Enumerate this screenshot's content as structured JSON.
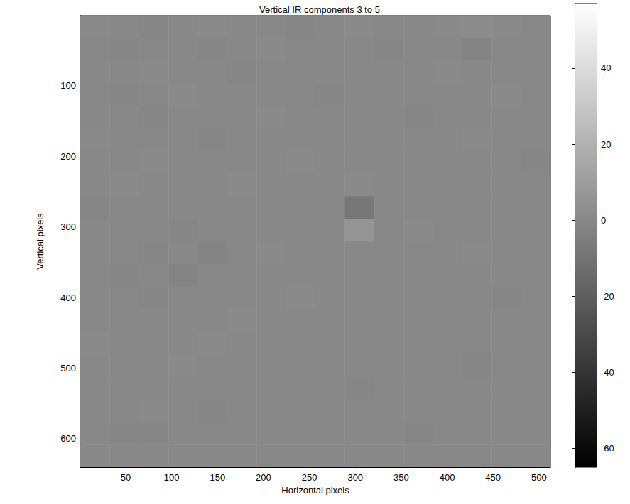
{
  "chart_data": {
    "type": "heatmap",
    "title": "Vertical IR components 3 to 5",
    "x_label": "Horizontal pixels",
    "y_label": "Vertical pixels",
    "color": "gray",
    "xlim": [
      0.5,
      512.5
    ],
    "ylim": [
      0.5,
      640.5
    ],
    "xticks": [
      50,
      100,
      150,
      200,
      250,
      300,
      350,
      400,
      450,
      500
    ],
    "yticks": [
      100,
      200,
      300,
      400,
      500,
      600
    ],
    "x_edges": [
      0.5,
      32.5,
      64.5,
      96.5,
      128.5,
      160.5,
      192.5,
      224.5,
      256.5,
      288.5,
      320.5,
      352.5,
      384.5,
      416.5,
      448.5,
      480.5,
      512.5
    ],
    "y_edges": [
      0.5,
      32.5,
      64.5,
      96.5,
      128.5,
      160.5,
      192.5,
      224.5,
      256.5,
      288.5,
      320.5,
      352.5,
      384.5,
      416.5,
      448.5,
      480.5,
      512.5,
      544.5,
      576.5,
      608.5,
      640.5
    ],
    "cells": [
      [
        1,
        0,
        -1,
        0,
        1,
        0,
        0,
        -1,
        0,
        1,
        0,
        0,
        1,
        2,
        1,
        0
      ],
      [
        0,
        -1,
        0,
        0,
        -1,
        0,
        1,
        0,
        0,
        0,
        -1,
        0,
        0,
        -2,
        0,
        0
      ],
      [
        0,
        0,
        1,
        0,
        0,
        -1,
        0,
        0,
        0,
        0,
        0,
        0,
        1,
        0,
        0,
        0
      ],
      [
        0,
        -1,
        0,
        1,
        0,
        0,
        0,
        0,
        -1,
        0,
        0,
        0,
        0,
        0,
        1,
        0
      ],
      [
        0,
        0,
        -1,
        0,
        0,
        0,
        1,
        0,
        0,
        0,
        0,
        -1,
        0,
        0,
        0,
        0
      ],
      [
        1,
        0,
        0,
        0,
        -1,
        0,
        0,
        0,
        0,
        0,
        0,
        0,
        0,
        1,
        0,
        0
      ],
      [
        0,
        0,
        1,
        0,
        0,
        0,
        0,
        1,
        0,
        0,
        0,
        0,
        0,
        0,
        0,
        -1
      ],
      [
        0,
        1,
        0,
        0,
        0,
        1,
        0,
        0,
        0,
        1,
        0,
        0,
        0,
        0,
        0,
        0
      ],
      [
        -1,
        0,
        0,
        0,
        0,
        0,
        0,
        0,
        0,
        -8,
        0,
        0,
        0,
        0,
        0,
        0
      ],
      [
        0,
        0,
        0,
        -1,
        0,
        0,
        0,
        0,
        0,
        6,
        0,
        1,
        0,
        0,
        0,
        0
      ],
      [
        0,
        0,
        -1,
        0,
        -2,
        0,
        1,
        0,
        0,
        0,
        0,
        0,
        0,
        1,
        0,
        0
      ],
      [
        0,
        -1,
        0,
        -2,
        0,
        0,
        0,
        0,
        0,
        0,
        0,
        0,
        0,
        0,
        0,
        0
      ],
      [
        0,
        0,
        -1,
        0,
        0,
        0,
        0,
        1,
        0,
        0,
        0,
        0,
        0,
        0,
        -1,
        0
      ],
      [
        0,
        0,
        0,
        0,
        0,
        1,
        0,
        0,
        0,
        0,
        0,
        0,
        0,
        0,
        0,
        0
      ],
      [
        1,
        0,
        0,
        0,
        1,
        0,
        0,
        0,
        0,
        0,
        0,
        0,
        0,
        0,
        0,
        0
      ],
      [
        0,
        0,
        0,
        1,
        0,
        0,
        0,
        0,
        0,
        0,
        0,
        0,
        0,
        -1,
        0,
        0
      ],
      [
        0,
        0,
        0,
        0,
        0,
        0,
        0,
        0,
        0,
        -1,
        0,
        0,
        0,
        0,
        0,
        0
      ],
      [
        0,
        0,
        1,
        0,
        -1,
        0,
        0,
        0,
        0,
        0,
        0,
        0,
        0,
        0,
        0,
        0
      ],
      [
        0,
        -1,
        -1,
        0,
        0,
        0,
        0,
        0,
        0,
        0,
        0,
        -1,
        0,
        0,
        0,
        0
      ],
      [
        0,
        0,
        0,
        0,
        0,
        0,
        0,
        0,
        0,
        0,
        0,
        0,
        0,
        0,
        0,
        0
      ]
    ],
    "colorbar": {
      "range": [
        -65,
        57
      ],
      "ticks": [
        -60,
        -40,
        -20,
        0,
        20,
        40
      ]
    }
  }
}
